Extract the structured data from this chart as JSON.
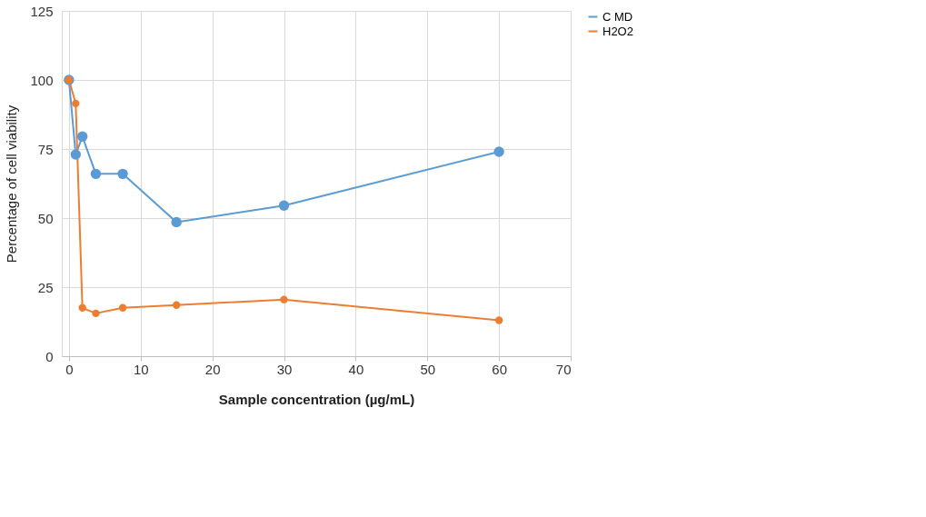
{
  "chart_data": {
    "type": "line",
    "xlabel": "Sample concentration (µg/mL)",
    "ylabel": "Percentage of cell viability",
    "x": [
      0,
      0.94,
      1.875,
      3.75,
      7.5,
      15,
      30,
      60
    ],
    "series": [
      {
        "name": "C MD",
        "color": "#5b9bd5",
        "values": [
          100,
          73,
          79.5,
          66,
          66,
          48.5,
          54.5,
          74
        ]
      },
      {
        "name": "H2O2",
        "color": "#ed7d31",
        "values": [
          100,
          91.5,
          17.5,
          15.5,
          17.5,
          18.5,
          20.5,
          13
        ]
      }
    ],
    "xlim": [
      -1,
      70
    ],
    "xticks": [
      0,
      10,
      20,
      30,
      40,
      50,
      60,
      70
    ],
    "ylim": [
      0,
      125
    ],
    "yticks": [
      0,
      25,
      50,
      75,
      100,
      125
    ],
    "grid": true,
    "legend": "right",
    "marker": "circle",
    "line_style": "solid"
  }
}
